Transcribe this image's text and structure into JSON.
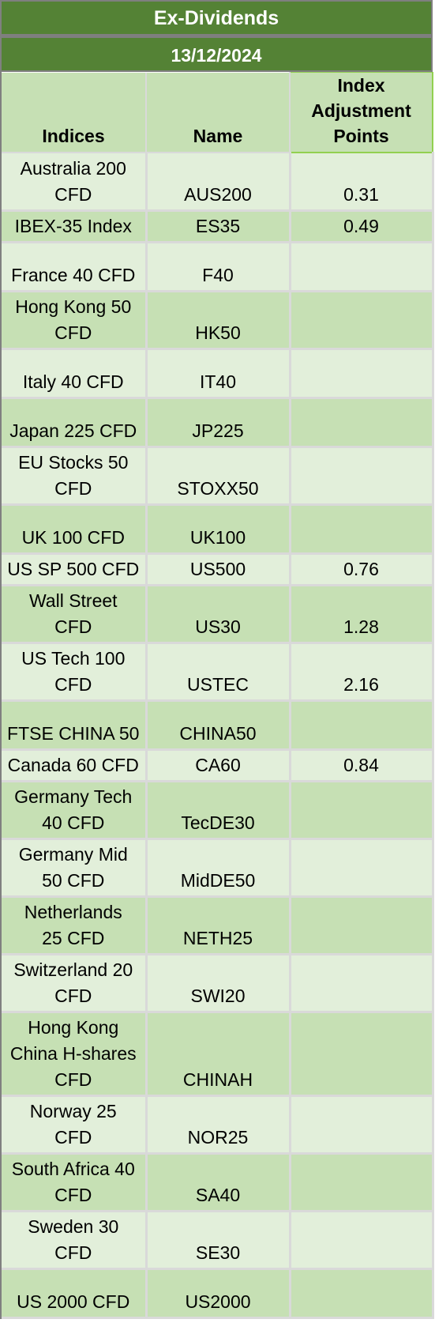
{
  "title": "Ex-Dividends",
  "date": "13/12/2024",
  "columns": {
    "indices": "Indices",
    "name": "Name",
    "points_line1": "Index",
    "points_line2": "Adjustment",
    "points_line3": "Points"
  },
  "rows": [
    {
      "index_l1": "Australia 200",
      "index_l2": "CFD",
      "name": "AUS200",
      "points": "0.31"
    },
    {
      "index_l1": "IBEX-35 Index",
      "index_l2": "",
      "name": "ES35",
      "points": "0.49"
    },
    {
      "index_l1": "France 40 CFD",
      "index_l2": "",
      "name": "F40",
      "points": ""
    },
    {
      "index_l1": "Hong Kong 50",
      "index_l2": "CFD",
      "name": "HK50",
      "points": ""
    },
    {
      "index_l1": "Italy 40 CFD",
      "index_l2": "",
      "name": "IT40",
      "points": ""
    },
    {
      "index_l1": "Japan 225 CFD",
      "index_l2": "",
      "name": "JP225",
      "points": ""
    },
    {
      "index_l1": "EU Stocks 50",
      "index_l2": "CFD",
      "name": "STOXX50",
      "points": ""
    },
    {
      "index_l1": "UK 100 CFD",
      "index_l2": "",
      "name": "UK100",
      "points": ""
    },
    {
      "index_l1": "US SP 500 CFD",
      "index_l2": "",
      "name": "US500",
      "points": "0.76"
    },
    {
      "index_l1": "Wall Street",
      "index_l2": "CFD",
      "name": "US30",
      "points": "1.28"
    },
    {
      "index_l1": "US Tech 100",
      "index_l2": "CFD",
      "name": "USTEC",
      "points": "2.16"
    },
    {
      "index_l1": "FTSE CHINA 50",
      "index_l2": "",
      "name": "CHINA50",
      "points": ""
    },
    {
      "index_l1": "Canada 60 CFD",
      "index_l2": "",
      "name": "CA60",
      "points": "0.84"
    },
    {
      "index_l1": "Germany Tech",
      "index_l2": "40 CFD",
      "name": "TecDE30",
      "points": ""
    },
    {
      "index_l1": "Germany Mid",
      "index_l2": "50 CFD",
      "name": "MidDE50",
      "points": ""
    },
    {
      "index_l1": "Netherlands",
      "index_l2": "25 CFD",
      "name": "NETH25",
      "points": ""
    },
    {
      "index_l1": "Switzerland 20",
      "index_l2": "CFD",
      "name": "SWI20",
      "points": ""
    },
    {
      "index_l1": "Hong Kong",
      "index_l2": "China H-shares",
      "index_l3": "CFD",
      "name": "CHINAH",
      "points": ""
    },
    {
      "index_l1": "Norway 25",
      "index_l2": "CFD",
      "name": "NOR25",
      "points": ""
    },
    {
      "index_l1": "South Africa 40",
      "index_l2": "CFD",
      "name": "SA40",
      "points": ""
    },
    {
      "index_l1": "Sweden 30",
      "index_l2": "CFD",
      "name": "SE30",
      "points": ""
    },
    {
      "index_l1": "US 2000 CFD",
      "index_l2": "",
      "name": "US2000",
      "points": ""
    }
  ]
}
